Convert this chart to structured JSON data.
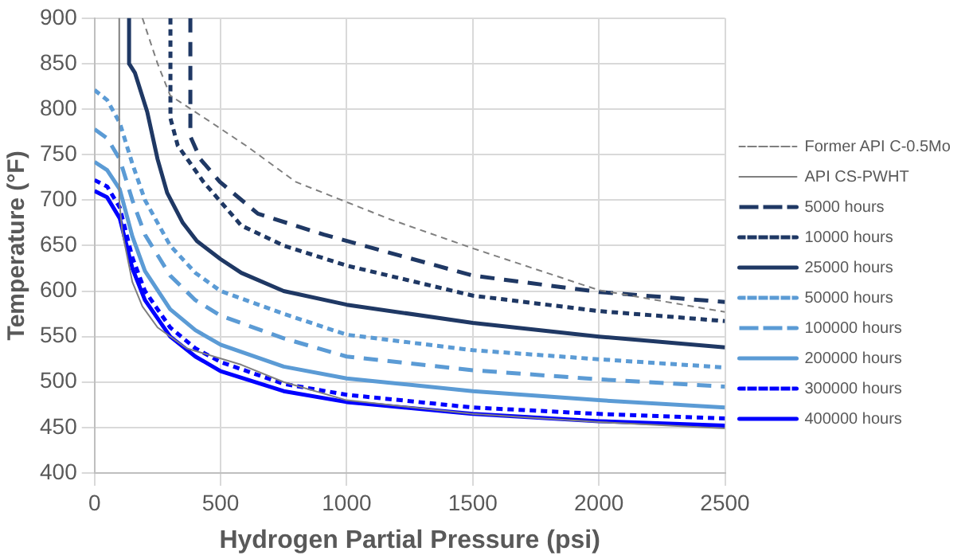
{
  "chart_data": {
    "type": "line",
    "xlabel": "Hydrogen Partial Pressure (psi)",
    "ylabel": "Temperature (°F)",
    "xlim": [
      0,
      2500
    ],
    "xticks": [
      0,
      500,
      1000,
      1500,
      2000,
      2500
    ],
    "ylim": [
      400,
      900
    ],
    "yticks": [
      400,
      450,
      500,
      550,
      600,
      650,
      700,
      750,
      800,
      850,
      900
    ],
    "grid": true,
    "legend": "right",
    "marker": "none",
    "series": [
      {
        "name": "Former API C-0.5Mo",
        "color": "#7f7f7f",
        "line_style": "dotted",
        "x": [
          190,
          250,
          300,
          432,
          600,
          798,
          1171,
          1500,
          2000,
          2500
        ],
        "values": [
          900,
          850,
          815,
          791,
          760,
          720,
          679,
          647,
          601,
          577
        ]
      },
      {
        "name": "API CS-PWHT",
        "color": "#7f7f7f",
        "line_style": "solid",
        "x": [
          98,
          98,
          110,
          150,
          190,
          250,
          366,
          582,
          750,
          1000,
          1500,
          2000,
          2500
        ],
        "values": [
          900,
          700,
          665,
          610,
          583,
          560,
          537,
          519,
          500,
          480,
          465,
          456,
          449
        ]
      },
      {
        "name": "5000 hours",
        "color": "#1f3864",
        "line_style": "dashed",
        "x": [
          380,
          380,
          420,
          497,
          648,
          910,
          1500,
          2000,
          2500
        ],
        "values": [
          900,
          770,
          745,
          720,
          685,
          662,
          617,
          599,
          588
        ]
      },
      {
        "name": "10000 hours",
        "color": "#1f3864",
        "line_style": "dotted",
        "x": [
          301,
          301,
          330,
          432,
          582,
          750,
          1000,
          1500,
          2000,
          2500
        ],
        "values": [
          900,
          790,
          760,
          720,
          672,
          650,
          628,
          595,
          578,
          567
        ]
      },
      {
        "name": "25000 hours",
        "color": "#1f3864",
        "line_style": "solid",
        "x": [
          137,
          137,
          160,
          209,
          250,
          288,
          350,
          406,
          500,
          582,
          750,
          1000,
          1500,
          2000,
          2500
        ],
        "values": [
          900,
          850,
          840,
          797,
          745,
          708,
          675,
          655,
          635,
          620,
          600,
          585,
          565,
          550,
          538
        ]
      },
      {
        "name": "50000 hours",
        "color": "#5b9bd5",
        "line_style": "dotted",
        "x": [
          0,
          50,
          100,
          150,
          200,
          300,
          400,
          500,
          750,
          1000,
          1500,
          2000,
          2500
        ],
        "values": [
          821,
          810,
          785,
          740,
          700,
          650,
          620,
          600,
          575,
          552,
          535,
          525,
          516
        ]
      },
      {
        "name": "100000 hours",
        "color": "#5b9bd5",
        "line_style": "dashed",
        "x": [
          0,
          50,
          100,
          150,
          200,
          300,
          400,
          500,
          750,
          1000,
          1500,
          2000,
          2500
        ],
        "values": [
          778,
          768,
          745,
          700,
          662,
          617,
          590,
          573,
          548,
          528,
          513,
          503,
          495
        ]
      },
      {
        "name": "200000 hours",
        "color": "#5b9bd5",
        "line_style": "solid",
        "x": [
          0,
          50,
          100,
          150,
          200,
          300,
          400,
          500,
          750,
          1000,
          1500,
          2000,
          2500
        ],
        "values": [
          742,
          733,
          712,
          660,
          622,
          580,
          557,
          541,
          517,
          504,
          490,
          480,
          472
        ]
      },
      {
        "name": "300000 hours",
        "color": "#0000ff",
        "line_style": "dotted",
        "x": [
          0,
          50,
          100,
          150,
          200,
          300,
          400,
          500,
          750,
          1000,
          1500,
          2000,
          2500
        ],
        "values": [
          722,
          715,
          692,
          637,
          600,
          560,
          537,
          522,
          498,
          486,
          472,
          465,
          460
        ]
      },
      {
        "name": "400000 hours",
        "color": "#0000ff",
        "line_style": "solid",
        "x": [
          0,
          50,
          100,
          150,
          200,
          300,
          400,
          500,
          750,
          1000,
          1500,
          2000,
          2500
        ],
        "values": [
          710,
          703,
          680,
          625,
          590,
          550,
          528,
          512,
          490,
          478,
          465,
          457,
          452
        ]
      }
    ]
  }
}
